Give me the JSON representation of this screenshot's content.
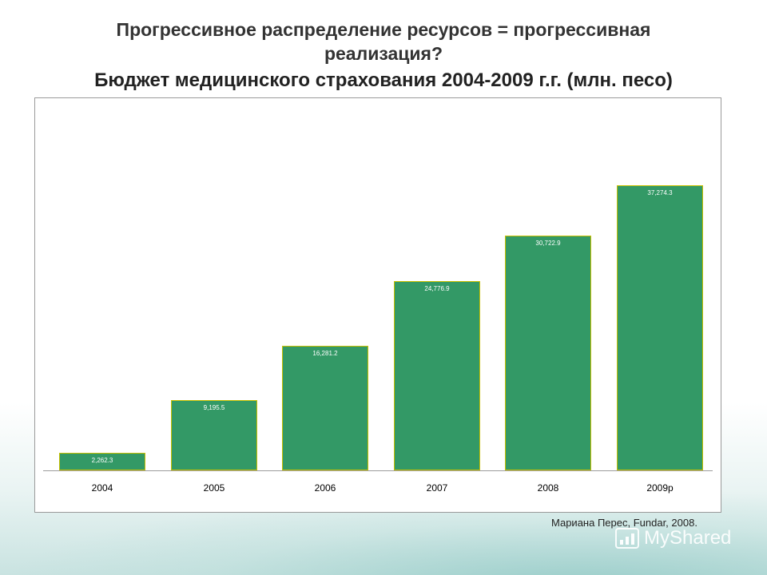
{
  "slide": {
    "title_line1": "Прогрессивное распределение ресурсов = прогрессивная",
    "title_line2": "реализация?",
    "title_line3": "Бюджет медицинского страхования 2004-2009 г.г. (млн. песо)",
    "source": "Мариана Перес, Fundar, 2008.",
    "watermark": "MyShared"
  },
  "chart_data": {
    "type": "bar",
    "categories": [
      "2004",
      "2005",
      "2006",
      "2007",
      "2008",
      "2009p"
    ],
    "values": [
      2262.3,
      9195.5,
      16281.2,
      24776.9,
      30722.9,
      37274.3
    ],
    "data_labels": [
      "2,262.3",
      "9,195.5",
      "16,281.2",
      "24,776.9",
      "30,722.9",
      "37,274.3"
    ],
    "ylim": [
      0,
      46000
    ],
    "grid": false,
    "legend": "none",
    "colors": {
      "bar": "#339966",
      "bar_border": "#c8c000"
    }
  }
}
